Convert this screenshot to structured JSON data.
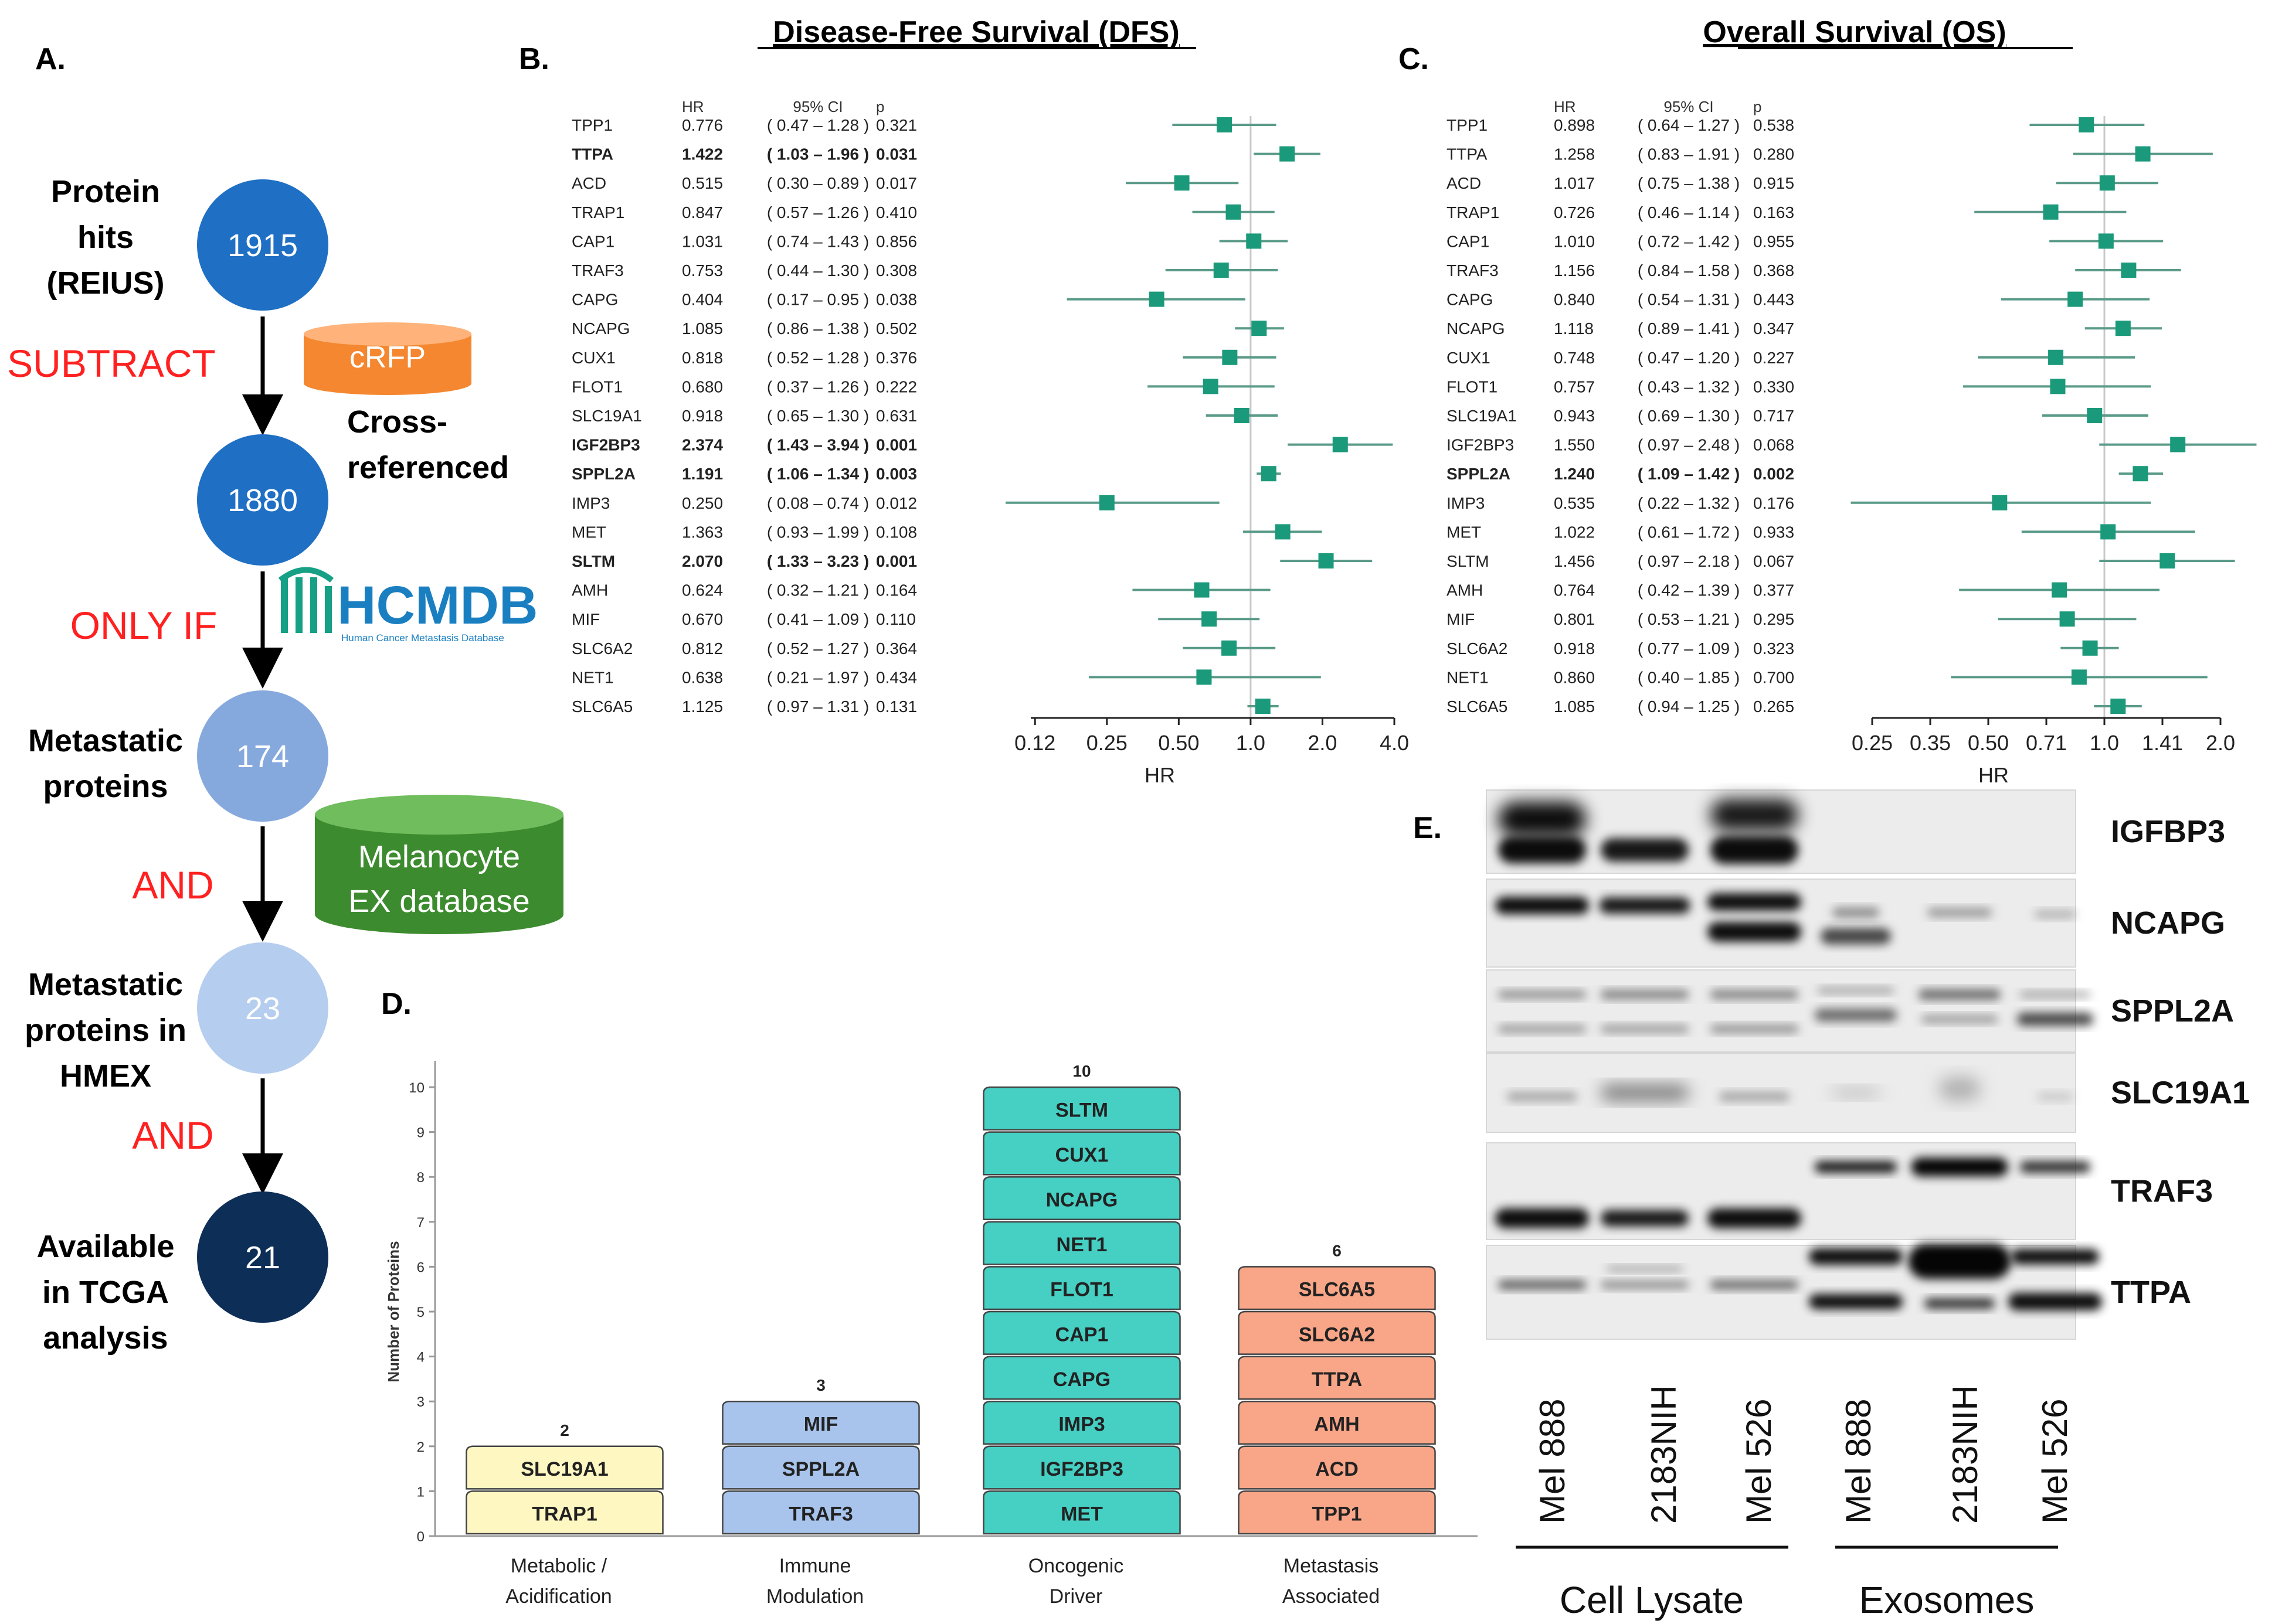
{
  "panels": {
    "a": "A.",
    "b": "B.",
    "c": "C.",
    "d": "D.",
    "e": "E."
  },
  "workflow": {
    "steps": [
      {
        "label": [
          "Protein",
          "hits",
          "(REIUS)"
        ],
        "count": "1915",
        "fill": "#1f6fc4"
      },
      {
        "label": [
          "Cross-",
          "referenced"
        ],
        "count": "1880",
        "fill": "#1f6fc4"
      },
      {
        "label": [
          "Metastatic",
          "proteins"
        ],
        "count": "174",
        "fill": "#86a9dd"
      },
      {
        "label": [
          "Metastatic",
          "proteins in",
          "HMEX"
        ],
        "count": "23",
        "fill": "#b5cdee"
      },
      {
        "label": [
          "Available",
          "in TCGA",
          "analysis"
        ],
        "count": "21",
        "fill": "#0d2e57"
      }
    ],
    "operators": [
      "SUBTRACT",
      "ONLY IF",
      "AND",
      "AND"
    ],
    "operator_color": "#ff2020",
    "databases": {
      "crfp": {
        "label": "cRFP",
        "color": "#f4872f"
      },
      "hcmdb": {
        "label": "HCMDB",
        "subtitle": "Human Cancer Metastasis Database",
        "color": "#1a7fc1",
        "logo_color": "#16a085"
      },
      "melanocyte": {
        "label": [
          "Melanocyte",
          "EX database"
        ],
        "color": "#3d8b2f"
      }
    }
  },
  "chart_data": [
    {
      "type": "forest",
      "title": "Disease-Free Survival (DFS)",
      "xlabel": "HR",
      "scale": "log2",
      "xlim": [
        0.12,
        4.0
      ],
      "xticks": [
        "0.12",
        "0.25",
        "0.50",
        "1.0",
        "2.0",
        "4.0"
      ],
      "xtick_values": [
        0.125,
        0.25,
        0.5,
        1.0,
        2.0,
        4.0
      ],
      "column_headers": [
        "HR",
        "95% CI",
        "p"
      ],
      "marker_color": "#1a9a7a",
      "rows": [
        {
          "gene": "TPP1",
          "hr": "0.776",
          "ci": "( 0.47 – 1.28 )",
          "p": "0.321",
          "lo": 0.47,
          "hi": 1.28,
          "bold": false
        },
        {
          "gene": "TTPA",
          "hr": "1.422",
          "ci": "( 1.03 – 1.96 )",
          "p": "0.031",
          "lo": 1.03,
          "hi": 1.96,
          "bold": true
        },
        {
          "gene": "ACD",
          "hr": "0.515",
          "ci": "( 0.30 – 0.89 )",
          "p": "0.017",
          "lo": 0.3,
          "hi": 0.89,
          "bold": false
        },
        {
          "gene": "TRAP1",
          "hr": "0.847",
          "ci": "( 0.57 – 1.26 )",
          "p": "0.410",
          "lo": 0.57,
          "hi": 1.26,
          "bold": false
        },
        {
          "gene": "CAP1",
          "hr": "1.031",
          "ci": "( 0.74 – 1.43 )",
          "p": "0.856",
          "lo": 0.74,
          "hi": 1.43,
          "bold": false
        },
        {
          "gene": "TRAF3",
          "hr": "0.753",
          "ci": "( 0.44 – 1.30 )",
          "p": "0.308",
          "lo": 0.44,
          "hi": 1.3,
          "bold": false
        },
        {
          "gene": "CAPG",
          "hr": "0.404",
          "ci": "( 0.17 – 0.95 )",
          "p": "0.038",
          "lo": 0.17,
          "hi": 0.95,
          "bold": false
        },
        {
          "gene": "NCAPG",
          "hr": "1.085",
          "ci": "( 0.86 – 1.38 )",
          "p": "0.502",
          "lo": 0.86,
          "hi": 1.38,
          "bold": false
        },
        {
          "gene": "CUX1",
          "hr": "0.818",
          "ci": "( 0.52 – 1.28 )",
          "p": "0.376",
          "lo": 0.52,
          "hi": 1.28,
          "bold": false
        },
        {
          "gene": "FLOT1",
          "hr": "0.680",
          "ci": "( 0.37 – 1.26 )",
          "p": "0.222",
          "lo": 0.37,
          "hi": 1.26,
          "bold": false
        },
        {
          "gene": "SLC19A1",
          "hr": "0.918",
          "ci": "( 0.65 – 1.30 )",
          "p": "0.631",
          "lo": 0.65,
          "hi": 1.3,
          "bold": false
        },
        {
          "gene": "IGF2BP3",
          "hr": "2.374",
          "ci": "( 1.43 – 3.94 )",
          "p": "0.001",
          "lo": 1.43,
          "hi": 3.94,
          "bold": true
        },
        {
          "gene": "SPPL2A",
          "hr": "1.191",
          "ci": "( 1.06 – 1.34 )",
          "p": "0.003",
          "lo": 1.06,
          "hi": 1.34,
          "bold": true
        },
        {
          "gene": "IMP3",
          "hr": "0.250",
          "ci": "( 0.08 – 0.74 )",
          "p": "0.012",
          "lo": 0.08,
          "hi": 0.74,
          "bold": false
        },
        {
          "gene": "MET",
          "hr": "1.363",
          "ci": "( 0.93 – 1.99 )",
          "p": "0.108",
          "lo": 0.93,
          "hi": 1.99,
          "bold": false
        },
        {
          "gene": "SLTM",
          "hr": "2.070",
          "ci": "( 1.33 – 3.23 )",
          "p": "0.001",
          "lo": 1.33,
          "hi": 3.23,
          "bold": true
        },
        {
          "gene": "AMH",
          "hr": "0.624",
          "ci": "( 0.32 – 1.21 )",
          "p": "0.164",
          "lo": 0.32,
          "hi": 1.21,
          "bold": false
        },
        {
          "gene": "MIF",
          "hr": "0.670",
          "ci": "( 0.41 – 1.09 )",
          "p": "0.110",
          "lo": 0.41,
          "hi": 1.09,
          "bold": false
        },
        {
          "gene": "SLC6A2",
          "hr": "0.812",
          "ci": "( 0.52 – 1.27 )",
          "p": "0.364",
          "lo": 0.52,
          "hi": 1.27,
          "bold": false
        },
        {
          "gene": "NET1",
          "hr": "0.638",
          "ci": "( 0.21 – 1.97 )",
          "p": "0.434",
          "lo": 0.21,
          "hi": 1.97,
          "bold": false
        },
        {
          "gene": "SLC6A5",
          "hr": "1.125",
          "ci": "( 0.97 – 1.31 )",
          "p": "0.131",
          "lo": 0.97,
          "hi": 1.31,
          "bold": false
        }
      ]
    },
    {
      "type": "forest",
      "title": "Overall Survival (OS)",
      "xlabel": "HR",
      "scale": "log2",
      "xlim": [
        0.25,
        2.0
      ],
      "xticks": [
        "0.25",
        "0.35",
        "0.50",
        "0.71",
        "1.0",
        "1.41",
        "2.0"
      ],
      "xtick_values": [
        0.25,
        0.3536,
        0.5,
        0.7071,
        1.0,
        1.4142,
        2.0
      ],
      "column_headers": [
        "HR",
        "95% CI",
        "p"
      ],
      "marker_color": "#1a9a7a",
      "rows": [
        {
          "gene": "TPP1",
          "hr": "0.898",
          "ci": "( 0.64 – 1.27 )",
          "p": "0.538",
          "lo": 0.64,
          "hi": 1.27,
          "bold": false
        },
        {
          "gene": "TTPA",
          "hr": "1.258",
          "ci": "( 0.83 – 1.91 )",
          "p": "0.280",
          "lo": 0.83,
          "hi": 1.91,
          "bold": false
        },
        {
          "gene": "ACD",
          "hr": "1.017",
          "ci": "( 0.75 – 1.38 )",
          "p": "0.915",
          "lo": 0.75,
          "hi": 1.38,
          "bold": false
        },
        {
          "gene": "TRAP1",
          "hr": "0.726",
          "ci": "( 0.46 – 1.14 )",
          "p": "0.163",
          "lo": 0.46,
          "hi": 1.14,
          "bold": false
        },
        {
          "gene": "CAP1",
          "hr": "1.010",
          "ci": "( 0.72 – 1.42 )",
          "p": "0.955",
          "lo": 0.72,
          "hi": 1.42,
          "bold": false
        },
        {
          "gene": "TRAF3",
          "hr": "1.156",
          "ci": "( 0.84 – 1.58 )",
          "p": "0.368",
          "lo": 0.84,
          "hi": 1.58,
          "bold": false
        },
        {
          "gene": "CAPG",
          "hr": "0.840",
          "ci": "( 0.54 – 1.31 )",
          "p": "0.443",
          "lo": 0.54,
          "hi": 1.31,
          "bold": false
        },
        {
          "gene": "NCAPG",
          "hr": "1.118",
          "ci": "( 0.89 – 1.41 )",
          "p": "0.347",
          "lo": 0.89,
          "hi": 1.41,
          "bold": false
        },
        {
          "gene": "CUX1",
          "hr": "0.748",
          "ci": "( 0.47 – 1.20 )",
          "p": "0.227",
          "lo": 0.47,
          "hi": 1.2,
          "bold": false
        },
        {
          "gene": "FLOT1",
          "hr": "0.757",
          "ci": "( 0.43 – 1.32 )",
          "p": "0.330",
          "lo": 0.43,
          "hi": 1.32,
          "bold": false
        },
        {
          "gene": "SLC19A1",
          "hr": "0.943",
          "ci": "( 0.69 – 1.30 )",
          "p": "0.717",
          "lo": 0.69,
          "hi": 1.3,
          "bold": false
        },
        {
          "gene": "IGF2BP3",
          "hr": "1.550",
          "ci": "( 0.97 – 2.48 )",
          "p": "0.068",
          "lo": 0.97,
          "hi": 2.48,
          "bold": false
        },
        {
          "gene": "SPPL2A",
          "hr": "1.240",
          "ci": "( 1.09 – 1.42 )",
          "p": "0.002",
          "lo": 1.09,
          "hi": 1.42,
          "bold": true
        },
        {
          "gene": "IMP3",
          "hr": "0.535",
          "ci": "( 0.22 – 1.32 )",
          "p": "0.176",
          "lo": 0.22,
          "hi": 1.32,
          "bold": false
        },
        {
          "gene": "MET",
          "hr": "1.022",
          "ci": "( 0.61 – 1.72 )",
          "p": "0.933",
          "lo": 0.61,
          "hi": 1.72,
          "bold": false
        },
        {
          "gene": "SLTM",
          "hr": "1.456",
          "ci": "( 0.97 – 2.18 )",
          "p": "0.067",
          "lo": 0.97,
          "hi": 2.18,
          "bold": false
        },
        {
          "gene": "AMH",
          "hr": "0.764",
          "ci": "( 0.42 – 1.39 )",
          "p": "0.377",
          "lo": 0.42,
          "hi": 1.39,
          "bold": false
        },
        {
          "gene": "MIF",
          "hr": "0.801",
          "ci": "( 0.53 – 1.21 )",
          "p": "0.295",
          "lo": 0.53,
          "hi": 1.21,
          "bold": false
        },
        {
          "gene": "SLC6A2",
          "hr": "0.918",
          "ci": "( 0.77 – 1.09 )",
          "p": "0.323",
          "lo": 0.77,
          "hi": 1.09,
          "bold": false
        },
        {
          "gene": "NET1",
          "hr": "0.860",
          "ci": "( 0.40 – 1.85 )",
          "p": "0.700",
          "lo": 0.4,
          "hi": 1.85,
          "bold": false
        },
        {
          "gene": "SLC6A5",
          "hr": "1.085",
          "ci": "( 0.94 – 1.25 )",
          "p": "0.265",
          "lo": 0.94,
          "hi": 1.25,
          "bold": false
        }
      ]
    },
    {
      "type": "bar",
      "stacked_labels": true,
      "ylabel": "Number of Proteins",
      "ylim": [
        0,
        10
      ],
      "yticks": [
        "0",
        "1",
        "2",
        "3",
        "4",
        "5",
        "6",
        "7",
        "8",
        "9",
        "10"
      ],
      "categories": [
        {
          "name": [
            "Metabolic /",
            "Acidification"
          ],
          "value": 2,
          "count_label": "2",
          "fill": "#fff7c2",
          "proteins": [
            "TRAP1",
            "SLC19A1"
          ]
        },
        {
          "name": [
            "Immune",
            "Modulation"
          ],
          "value": 3,
          "count_label": "3",
          "fill": "#a8c4ec",
          "proteins": [
            "TRAF3",
            "SPPL2A",
            "MIF"
          ]
        },
        {
          "name": [
            "Oncogenic",
            "Driver"
          ],
          "value": 10,
          "count_label": "10",
          "fill": "#46cfc3",
          "proteins": [
            "MET",
            "IGF2BP3",
            "IMP3",
            "CAPG",
            "CAP1",
            "FLOT1",
            "NET1",
            "NCAPG",
            "CUX1",
            "SLTM"
          ]
        },
        {
          "name": [
            "Metastasis",
            "Associated"
          ],
          "value": 6,
          "count_label": "6",
          "fill": "#f9a688",
          "proteins": [
            "TPP1",
            "ACD",
            "AMH",
            "TTPA",
            "SLC6A2",
            "SLC6A5"
          ]
        }
      ]
    }
  ],
  "western_blot": {
    "proteins": [
      "IGFBP3",
      "NCAPG",
      "SPPL2A",
      "SLC19A1",
      "TRAF3",
      "TTPA"
    ],
    "lanes": [
      "Mel 888",
      "2183NIH",
      "Mel 526",
      "Mel 888",
      "2183NIH",
      "Mel 526"
    ],
    "groups": [
      "Cell Lysate",
      "Exosomes"
    ]
  }
}
